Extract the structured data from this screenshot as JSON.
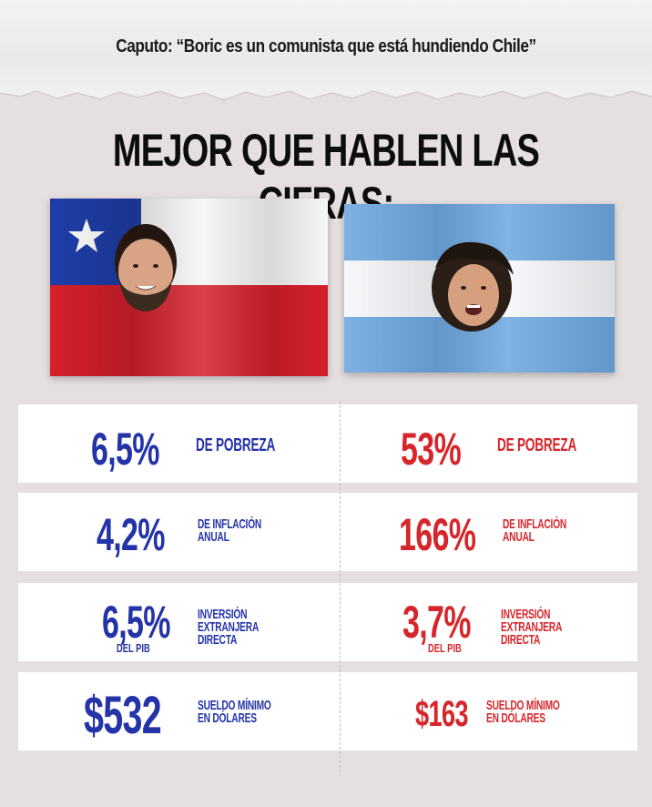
{
  "header": {
    "quote": "Caputo: “Boric es un comunista que está hundiendo Chile”",
    "headline": "MEJOR QUE HABLEN LAS CIFRAS:"
  },
  "colors": {
    "chile_blue": "#2433a8",
    "argentina_red": "#d7262b",
    "chile_flag_blue": "#1e3ea8",
    "chile_flag_red": "#d5202b",
    "argentina_flag_light_blue": "#6fa8e0"
  },
  "flags": {
    "chile": {
      "icon": "chile-flag-with-boric-portrait"
    },
    "argentina": {
      "icon": "argentina-flag-with-milei-portrait"
    }
  },
  "stats": {
    "chile": {
      "poverty": {
        "value": "6,5%",
        "label": "DE POBREZA"
      },
      "inflation": {
        "value": "4,2%",
        "label": "DE INFLACIÓN\nANUAL"
      },
      "investment": {
        "value": "6,5%",
        "label": "INVERSIÓN EXTRANJERA\nDIRECTA",
        "sub": "DEL PIB"
      },
      "wage": {
        "value": "$532",
        "label": "SUELDO MÍNIMO\nEN DÓLARES"
      }
    },
    "argentina": {
      "poverty": {
        "value": "53%",
        "label": "DE POBREZA"
      },
      "inflation": {
        "value": "166%",
        "label": "DE INFLACIÓN\nANUAL"
      },
      "investment": {
        "value": "3,7%",
        "label": "INVERSIÓN EXTRANJERA\nDIRECTA",
        "sub": "DEL PIB"
      },
      "wage": {
        "value": "$163",
        "label": "SUELDO MÍNIMO\nEN DÓLARES"
      }
    }
  }
}
